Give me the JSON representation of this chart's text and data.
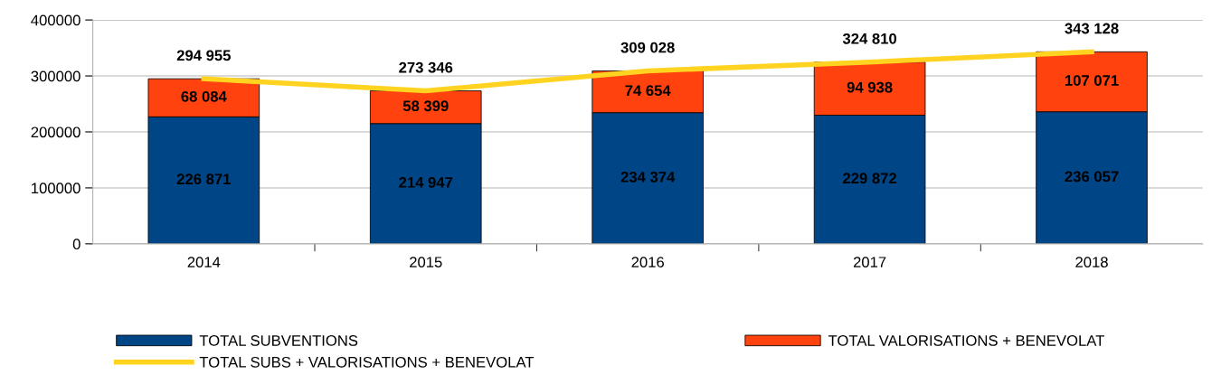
{
  "chart_data": {
    "type": "bar",
    "stacked": true,
    "categories": [
      "2014",
      "2015",
      "2016",
      "2017",
      "2018"
    ],
    "series": [
      {
        "name": "TOTAL SUBVENTIONS",
        "color": "#004586",
        "values": [
          226871,
          214947,
          234374,
          229872,
          236057
        ],
        "value_labels": [
          "226 871",
          "214 947",
          "234 374",
          "229 872",
          "236 057"
        ]
      },
      {
        "name": "TOTAL VALORISATIONS + BENEVOLAT",
        "color": "#ff420e",
        "values": [
          68084,
          58399,
          74654,
          94938,
          107071
        ],
        "value_labels": [
          "68 084",
          "58 399",
          "74 654",
          "94 938",
          "107 071"
        ]
      },
      {
        "name": "TOTAL SUBS + VALORISATIONS + BENEVOLAT",
        "type": "line",
        "color": "#ffd320",
        "values": [
          294955,
          273346,
          309028,
          324810,
          343128
        ],
        "value_labels": [
          "294 955",
          "273 346",
          "309 028",
          "324 810",
          "343 128"
        ]
      }
    ],
    "ylim": [
      0,
      400000
    ],
    "yticks": [
      0,
      100000,
      200000,
      300000,
      400000
    ],
    "grid": "y",
    "legend": "bottom",
    "marker": "none",
    "line_style": "solid"
  }
}
